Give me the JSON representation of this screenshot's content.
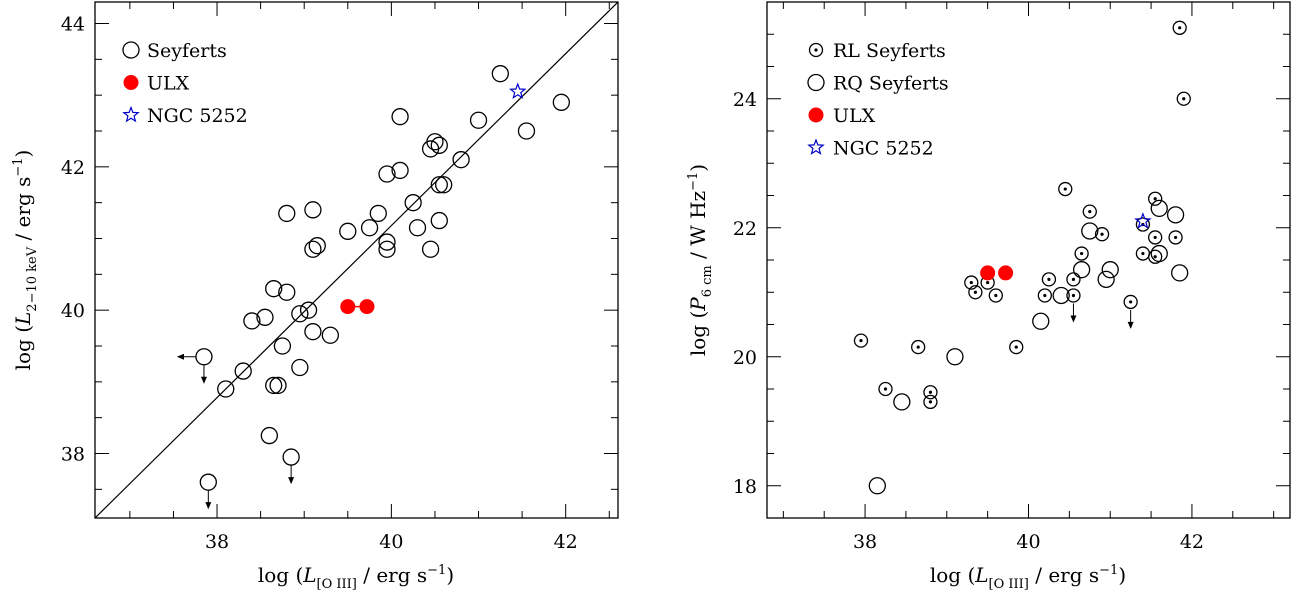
{
  "chart_data": [
    {
      "type": "scatter",
      "xlabel": "log (L[O III] / erg s⁻¹)",
      "ylabel": "log (L2-10 keV / erg s⁻¹)",
      "xlabel_parts": {
        "pre": "log (",
        "sym": "L",
        "sub": "[O III]",
        "post": " / erg s",
        "sup": "−1",
        "end": ")"
      },
      "ylabel_parts": {
        "pre": "log (",
        "sym": "L",
        "sub": "2−10 keV",
        "post": " / erg s",
        "sup": "−1",
        "end": ")"
      },
      "xlim": [
        36.6,
        42.6
      ],
      "ylim": [
        37.1,
        44.3
      ],
      "xticks": [
        38,
        40,
        42
      ],
      "yticks": [
        38,
        40,
        42,
        44
      ],
      "xminor": 0.5,
      "yminor": 0.5,
      "legend_position": "top-left",
      "line": {
        "x": [
          36.6,
          42.6
        ],
        "y": [
          37.1,
          44.3
        ]
      },
      "series": [
        {
          "name": "Seyferts",
          "marker": "open-circle",
          "points": [
            [
              38.1,
              38.9
            ],
            [
              38.3,
              39.15
            ],
            [
              38.4,
              39.85
            ],
            [
              38.55,
              39.9
            ],
            [
              38.65,
              40.3
            ],
            [
              38.8,
              40.25
            ],
            [
              38.65,
              38.95
            ],
            [
              38.7,
              38.95
            ],
            [
              38.75,
              39.5
            ],
            [
              38.95,
              39.95
            ],
            [
              39.05,
              40.0
            ],
            [
              38.95,
              39.2
            ],
            [
              39.1,
              39.7
            ],
            [
              39.3,
              39.65
            ],
            [
              38.8,
              41.35
            ],
            [
              39.1,
              41.4
            ],
            [
              39.1,
              40.85
            ],
            [
              39.15,
              40.9
            ],
            [
              39.5,
              41.1
            ],
            [
              39.75,
              41.15
            ],
            [
              39.85,
              41.35
            ],
            [
              39.95,
              40.95
            ],
            [
              39.95,
              40.85
            ],
            [
              39.95,
              41.9
            ],
            [
              40.1,
              41.95
            ],
            [
              40.1,
              42.7
            ],
            [
              40.25,
              41.5
            ],
            [
              40.3,
              41.15
            ],
            [
              40.45,
              40.85
            ],
            [
              40.45,
              42.25
            ],
            [
              40.5,
              42.35
            ],
            [
              40.55,
              42.3
            ],
            [
              40.55,
              41.25
            ],
            [
              40.55,
              41.75
            ],
            [
              40.6,
              41.75
            ],
            [
              40.8,
              42.1
            ],
            [
              41.0,
              42.65
            ],
            [
              41.25,
              43.3
            ],
            [
              41.55,
              42.5
            ],
            [
              41.95,
              42.9
            ],
            [
              38.6,
              38.25
            ]
          ],
          "upper_limits": [
            [
              37.9,
              37.6
            ],
            [
              38.85,
              37.95
            ]
          ],
          "xy_limits": [
            [
              37.85,
              39.35
            ]
          ]
        },
        {
          "name": "ULX",
          "marker": "filled-red-circle",
          "points": [
            [
              39.5,
              40.05
            ],
            [
              39.72,
              40.05
            ]
          ],
          "connected": true
        },
        {
          "name": "NGC 5252",
          "marker": "blue-star",
          "points": [
            [
              41.45,
              43.05
            ]
          ]
        }
      ]
    },
    {
      "type": "scatter",
      "xlabel": "log (L[O III] / erg s⁻¹)",
      "ylabel": "log (P6 cm / W Hz⁻¹)",
      "xlabel_parts": {
        "pre": "log (",
        "sym": "L",
        "sub": "[O III]",
        "post": " / erg s",
        "sup": "−1",
        "end": ")"
      },
      "ylabel_parts": {
        "pre": "log (",
        "sym": "P",
        "sub": "6 cm",
        "post": " / W Hz",
        "sup": "−1",
        "end": ")"
      },
      "xlim": [
        36.8,
        43.2
      ],
      "ylim": [
        17.5,
        25.5
      ],
      "xticks": [
        38,
        40,
        42
      ],
      "yticks": [
        18,
        20,
        22,
        24
      ],
      "xminor": 0.5,
      "yminor": 0.5,
      "legend_position": "top-left",
      "series": [
        {
          "name": "RL Seyferts",
          "marker": "dotted-circle",
          "points": [
            [
              37.95,
              20.25
            ],
            [
              38.25,
              19.5
            ],
            [
              38.65,
              20.15
            ],
            [
              38.8,
              19.45
            ],
            [
              38.8,
              19.3
            ],
            [
              39.3,
              21.15
            ],
            [
              39.35,
              21.0
            ],
            [
              39.5,
              21.15
            ],
            [
              39.6,
              20.95
            ],
            [
              39.85,
              20.15
            ],
            [
              40.2,
              20.95
            ],
            [
              40.25,
              21.2
            ],
            [
              40.45,
              22.6
            ],
            [
              40.55,
              21.2
            ],
            [
              40.65,
              21.6
            ],
            [
              40.75,
              22.25
            ],
            [
              40.9,
              21.9
            ],
            [
              41.4,
              21.6
            ],
            [
              41.55,
              21.85
            ],
            [
              41.55,
              22.45
            ],
            [
              41.8,
              21.85
            ],
            [
              41.85,
              25.1
            ],
            [
              41.9,
              24.0
            ],
            [
              41.4,
              22.05
            ],
            [
              41.55,
              21.55
            ]
          ],
          "upper_limits": [
            [
              40.55,
              20.95
            ],
            [
              41.25,
              20.85
            ]
          ]
        },
        {
          "name": "RQ Seyferts",
          "marker": "open-circle",
          "points": [
            [
              38.15,
              18.0
            ],
            [
              38.45,
              19.3
            ],
            [
              39.1,
              20.0
            ],
            [
              40.15,
              20.55
            ],
            [
              40.4,
              20.95
            ],
            [
              40.65,
              21.35
            ],
            [
              40.75,
              21.95
            ],
            [
              40.95,
              21.2
            ],
            [
              41.0,
              21.35
            ],
            [
              41.6,
              22.3
            ],
            [
              41.6,
              21.6
            ],
            [
              41.8,
              22.2
            ],
            [
              41.85,
              21.3
            ]
          ]
        },
        {
          "name": "ULX",
          "marker": "filled-red-circle",
          "points": [
            [
              39.5,
              21.3
            ],
            [
              39.72,
              21.3
            ]
          ]
        },
        {
          "name": "NGC 5252",
          "marker": "blue-star",
          "points": [
            [
              41.4,
              22.1
            ]
          ]
        }
      ]
    }
  ]
}
